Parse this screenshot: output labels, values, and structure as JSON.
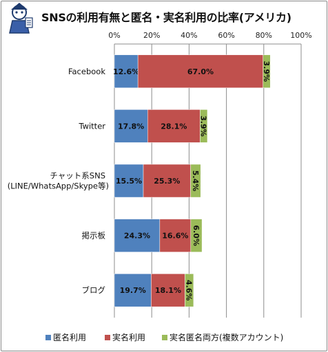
{
  "chart_data": {
    "type": "bar",
    "orientation": "horizontal",
    "stacked": true,
    "title": "SNSの利用有無と匿名・実名利用の比率(アメリカ)",
    "categories": [
      [
        "Facebook"
      ],
      [
        "Twitter"
      ],
      [
        "チャット系SNS",
        "(LINE/WhatsApp/Skype等)"
      ],
      [
        "掲示板"
      ],
      [
        "ブログ"
      ]
    ],
    "series": [
      {
        "name": "匿名利用",
        "color": "#4f81bd",
        "values": [
          12.6,
          17.8,
          15.5,
          24.3,
          19.7
        ]
      },
      {
        "name": "実名利用",
        "color": "#c0504d",
        "values": [
          67.0,
          28.1,
          25.3,
          16.6,
          18.1
        ]
      },
      {
        "name": "実名匿名両方(複数アカウント)",
        "color": "#9bbb59",
        "values": [
          3.9,
          3.9,
          5.4,
          6.0,
          4.6
        ]
      }
    ],
    "xlim": [
      0,
      100
    ],
    "xticks": [
      "0%",
      "20%",
      "40%",
      "60%",
      "80%",
      "100%"
    ],
    "grid": true,
    "legend_position": "bottom"
  }
}
